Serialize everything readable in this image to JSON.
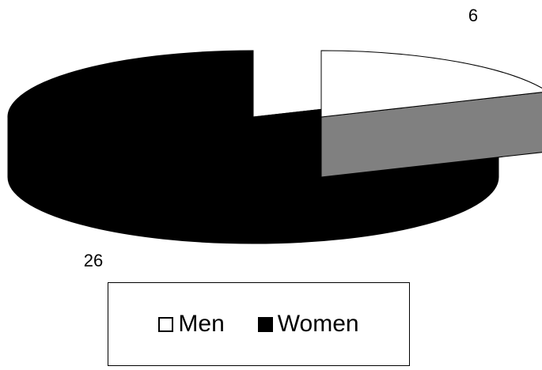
{
  "chart_data": {
    "type": "pie",
    "style": "3d-exploded",
    "title": "",
    "legend_position": "bottom",
    "series": [
      {
        "name": "Men",
        "value": 6,
        "top_color": "#ffffff",
        "side_color": "#808080"
      },
      {
        "name": "Women",
        "value": 26,
        "top_color": "#000000",
        "side_color": "#000000"
      }
    ]
  }
}
